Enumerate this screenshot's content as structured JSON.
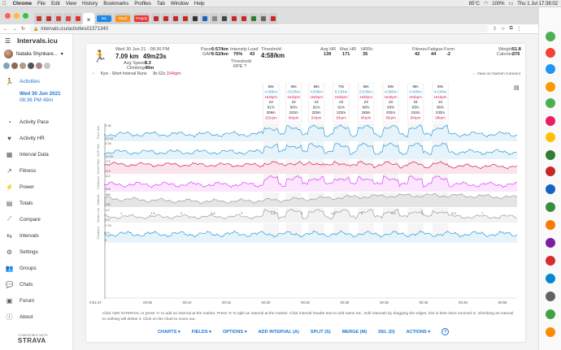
{
  "menubar": {
    "app": "Chrome",
    "items": [
      "File",
      "Edit",
      "View",
      "History",
      "Bookmarks",
      "Profiles",
      "Tab",
      "Window",
      "Help"
    ],
    "clock": "Thu 1 Jul  17:38:02",
    "battery": "100%",
    "temperature": "85°C"
  },
  "browser": {
    "url": "intervals.icu/activities/i1371340",
    "tabs": [
      {
        "color": "#c0392b"
      },
      {
        "color": "#b33"
      },
      {
        "color": "#c44"
      },
      {
        "color": "#d44"
      },
      {
        "color": "#d33"
      },
      {
        "color": "#fff",
        "active": true
      },
      {
        "color": "#1e88e5",
        "label": "ML"
      },
      {
        "color": "#f7931e",
        "label": "Reed"
      },
      {
        "color": "#e53935",
        "label": "Proprly"
      },
      {
        "color": "#c62828"
      },
      {
        "color": "#c62828"
      },
      {
        "color": "#c62828"
      },
      {
        "color": "#c62828"
      },
      {
        "color": "#333"
      },
      {
        "color": "#1565c0"
      },
      {
        "color": "#888"
      },
      {
        "color": "#444"
      },
      {
        "color": "#c62828"
      },
      {
        "color": "#c62828"
      },
      {
        "color": "#2e7d32"
      },
      {
        "color": "#666"
      },
      {
        "color": "#c62828"
      }
    ]
  },
  "sidebar": {
    "title": "Intervals.icu",
    "user": "Natalia Shynkare...",
    "nav": [
      {
        "label": "Activities",
        "icon": "running-icon",
        "active": true
      },
      {
        "label": "Activity Pace",
        "icon": "speedometer-icon"
      },
      {
        "label": "Activity HR",
        "icon": "heart-icon"
      },
      {
        "label": "Interval Data",
        "icon": "table-icon"
      },
      {
        "label": "Fitness",
        "icon": "fitness-icon"
      },
      {
        "label": "Power",
        "icon": "power-icon"
      },
      {
        "label": "Totals",
        "icon": "totals-icon"
      },
      {
        "label": "Compare",
        "icon": "compare-icon"
      },
      {
        "label": "Intervals",
        "icon": "intervals-icon"
      },
      {
        "label": "Settings",
        "icon": "gear-icon"
      },
      {
        "label": "Groups",
        "icon": "groups-icon"
      },
      {
        "label": "Chats",
        "icon": "chat-icon"
      },
      {
        "label": "Forum",
        "icon": "forum-icon"
      },
      {
        "label": "About",
        "icon": "info-icon"
      }
    ],
    "selected_activity": {
      "date": "Wed 30 Jun 2021",
      "time": "08:36 PM  49m"
    },
    "strava_note": "COMPATIBLE WITH",
    "strava": "STRAVA"
  },
  "activity": {
    "datetime": "Wed 30 Jun 21  ·  08:36 PM",
    "distance": "7.09 km",
    "moving_time": "49m23s",
    "avg_speed_label": "Avg Speed",
    "avg_speed": "8.3",
    "climbing_label": "Climbing",
    "climbing": "40m",
    "pace_label": "Pace",
    "pace": "6:57/km",
    "gap_label": "GAP",
    "gap": "6:52/km",
    "intensity_label": "Intensity",
    "intensity": "70%",
    "load_label": "Load",
    "load": "43",
    "threshold_label": "Threshold",
    "threshold": "4:58/km",
    "threshold2": "Threshold",
    "rpe": "RPE ?",
    "avghr_label": "Avg HR",
    "avghr": "139",
    "maxhr_label": "Max HR",
    "maxhr": "171",
    "hrrc_label": "HRRc",
    "hrrc": "35",
    "fitness_label": "Fitness",
    "fitness": "42",
    "fatigue_label": "Fatigue",
    "fatigue": "44",
    "form_label": "Form",
    "form": "-2",
    "weight_label": "Weight",
    "weight": "51.8",
    "calories_label": "Calories",
    "calories": "376",
    "subtitle": "Kyiv - Short Interval Runs",
    "interval_summary": "8x  62s",
    "interval_summary_hr": "154bpm",
    "garmin_link": "← View on Garmin Connect"
  },
  "chart_data": {
    "type": "line",
    "tracks": [
      "Pace /km",
      "GAP /km",
      "Heart Rate",
      "Cadence",
      "Altitude",
      "Stride Len",
      "Gradient"
    ],
    "track_labels": [
      [
        "3:36",
        "12:09",
        "3:36",
        "12:09"
      ],
      [
        "173",
        "123",
        "122"
      ],
      [
        "156",
        "136",
        "108"
      ],
      [
        "1.6",
        "0.8",
        "0.8"
      ],
      [
        "7.09",
        "5.6",
        "0"
      ]
    ],
    "track_rows": [
      {
        "axis": "Pace /km",
        "ticks": [
          "3:36",
          "12:09"
        ],
        "y": 118,
        "h": 22,
        "color": "#2d9cdb",
        "fill": "#e6f3fb"
      },
      {
        "axis": "GAP /km",
        "ticks": [
          "3:36",
          "12:09"
        ],
        "y": 140,
        "h": 22,
        "color": "#2d9cdb",
        "fill": "#e6f3fb"
      },
      {
        "axis": "Heart Rate",
        "ticks": [
          "173",
          "123"
        ],
        "y": 162,
        "h": 18,
        "color": "#d81b60",
        "fill": "#fbe3ec"
      },
      {
        "axis": "Cadence",
        "ticks": [
          "122",
          "108"
        ],
        "y": 180,
        "h": 22,
        "color": "#e040fb",
        "fill": "#fbe6fe"
      },
      {
        "axis": "Altitude",
        "ticks": [
          "156",
          "136"
        ],
        "y": 203,
        "h": 18,
        "color": "#9e9e9e",
        "fill": "#e5e5e5"
      },
      {
        "axis": "Stride Len",
        "ticks": [
          "1.6",
          "0.8"
        ],
        "y": 222,
        "h": 18,
        "color": "#9e9e9e",
        "fill": "#f2f2f2"
      },
      {
        "axis": "Gradient",
        "ticks": [
          "7.09",
          "5.6",
          "0"
        ],
        "y": 241,
        "h": 24,
        "color": "#2d9cdb",
        "fill": "#e6f3fb"
      }
    ],
    "x_ticks": [
      "0:51:47",
      "00:05",
      "00:10",
      "00:15",
      "00:20",
      "00:25",
      "00:30",
      "00:35",
      "00:40",
      "00:45",
      "00:50"
    ],
    "intervals": [
      {
        "dur": "58s",
        "pace": "4:35/km",
        "hr": "153bpm",
        "cad": "23",
        "pct": "91%",
        "dist": "209m",
        "max": "151rpm"
      },
      {
        "dur": "65s",
        "pace": "4:52/km",
        "hr": "151bpm",
        "cad": "23",
        "pct": "90%",
        "dist": "222m",
        "max": "96rpm"
      },
      {
        "dur": "66s",
        "pace": "4:53/km",
        "hr": "152bpm",
        "cad": "23",
        "pct": "91%",
        "dist": "225m",
        "max": "92rpm"
      },
      {
        "dur": "70s",
        "pace": "5:13/km",
        "hr": "152bpm",
        "cad": "23",
        "pct": "91%",
        "dist": "223m",
        "max": "93rpm"
      },
      {
        "dur": "58s",
        "pace": "5:03/km",
        "hr": "153bpm",
        "cad": "23",
        "pct": "90%",
        "dist": "185m",
        "max": "96rpm"
      },
      {
        "dur": "59s",
        "pace": "4:39/km",
        "hr": "154bpm",
        "cad": "23",
        "pct": "93%",
        "dist": "202m",
        "max": "95rpm"
      },
      {
        "dur": "59s",
        "pace": "4:40/km",
        "hr": "154bpm",
        "cad": "23",
        "pct": "93%",
        "dist": "210m",
        "max": "96rpm"
      },
      {
        "dur": "59s",
        "pace": "4:13/km",
        "hr": "161bpm",
        "cad": "24",
        "pct": "96%",
        "dist": "233m",
        "max": "98rpm"
      }
    ],
    "lap_labels": [
      "1",
      "1.5",
      "2",
      "2.5",
      "3",
      "3.5",
      "4",
      "4.5",
      "5",
      "5.5",
      "6",
      "6.5",
      "7"
    ]
  },
  "hint": "Click ADD INTERVAL or press 'A' to add an interval at the marker. Press 'S' to split an interval at the marker. Click interval header text to edit name etc.. Edit intervals by dragging the edges, this is best done zoomed in. Shrinking an interval to nothing will delete it. Click on the chart to zoom out.",
  "actions": {
    "charts": "CHARTS",
    "fields": "FIELDS",
    "options": "OPTIONS",
    "add": "ADD INTERVAL (A)",
    "split": "SPLIT (S)",
    "merge": "MERGE (M)",
    "del": "DEL (D)",
    "actions": "ACTIONS"
  }
}
